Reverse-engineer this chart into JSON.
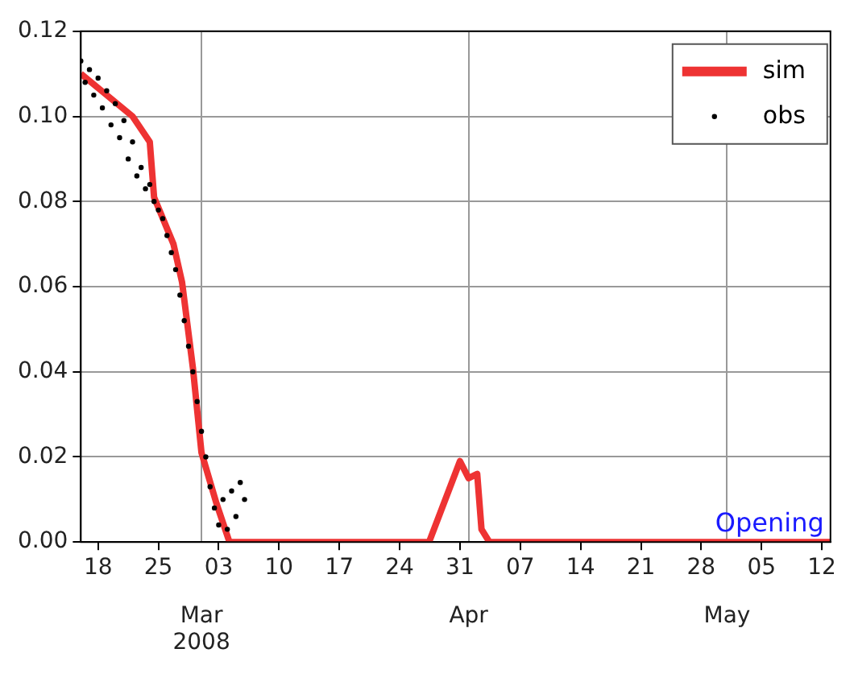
{
  "chart_data": {
    "type": "line",
    "xlim": [
      "2008-02-16",
      "2008-05-13"
    ],
    "xticks": [
      {
        "value": "2008-02-18",
        "label": "18"
      },
      {
        "value": "2008-02-25",
        "label": "25"
      },
      {
        "value": "2008-03-03",
        "label": "03"
      },
      {
        "value": "2008-03-10",
        "label": "10"
      },
      {
        "value": "2008-03-17",
        "label": "17"
      },
      {
        "value": "2008-03-24",
        "label": "24"
      },
      {
        "value": "2008-03-31",
        "label": "31"
      },
      {
        "value": "2008-04-07",
        "label": "07"
      },
      {
        "value": "2008-04-14",
        "label": "14"
      },
      {
        "value": "2008-04-21",
        "label": "21"
      },
      {
        "value": "2008-04-28",
        "label": "28"
      },
      {
        "value": "2008-05-05",
        "label": "05"
      },
      {
        "value": "2008-05-12",
        "label": "12"
      }
    ],
    "x2lim": [
      "2008-02-16",
      "2008-05-13"
    ],
    "x2ticks": [
      {
        "value": "2008-03-01",
        "label": "Mar 2008"
      },
      {
        "value": "2008-04-01",
        "label": "Apr"
      },
      {
        "value": "2008-05-01",
        "label": "May"
      }
    ],
    "ylim": [
      0,
      0.12
    ],
    "yticks": [
      {
        "value": 0,
        "label": "0.00"
      },
      {
        "value": 0.02,
        "label": "0.02"
      },
      {
        "value": 0.04,
        "label": "0.04"
      },
      {
        "value": 0.06,
        "label": "0.06"
      },
      {
        "value": 0.08,
        "label": "0.08"
      },
      {
        "value": 0.1,
        "label": "0.10"
      },
      {
        "value": 0.12,
        "label": "0.12"
      }
    ],
    "grid": true,
    "legend": "top right",
    "annotations": [
      "Opening"
    ],
    "series": [
      {
        "name": "sim",
        "color": "#ee3333",
        "x": [
          "2008-02-16",
          "2008-02-22",
          "2008-02-24",
          "2008-02-24T12:00",
          "2008-02-26T18:00",
          "2008-02-27T18:00",
          "2008-02-29",
          "2008-03-01",
          "2008-03-02T18:00",
          "2008-03-04T06:00",
          "2008-03-27T10:00",
          "2008-03-31",
          "2008-04-01",
          "2008-04-02",
          "2008-04-02T12:00",
          "2008-04-03T10:00",
          "2008-05-13"
        ],
        "values": [
          0.11,
          0.1,
          0.094,
          0.081,
          0.07,
          0.061,
          0.041,
          0.021,
          0.009,
          0,
          0,
          0.019,
          0.015,
          0.016,
          0.003,
          0,
          0
        ]
      },
      {
        "name": "obs",
        "type": "scatter",
        "marker": "circle",
        "color": "#000000",
        "x": [
          "2008-02-16",
          "2008-02-16T12:00",
          "2008-02-17",
          "2008-02-17T12:00",
          "2008-02-18",
          "2008-02-18T12:00",
          "2008-02-19",
          "2008-02-19T12:00",
          "2008-02-20",
          "2008-02-20T12:00",
          "2008-02-21",
          "2008-02-21T12:00",
          "2008-02-22",
          "2008-02-22T12:00",
          "2008-02-23",
          "2008-02-23T12:00",
          "2008-02-24",
          "2008-02-24T12:00",
          "2008-02-25",
          "2008-02-25T12:00",
          "2008-02-26",
          "2008-02-26T12:00",
          "2008-02-27",
          "2008-02-27T12:00",
          "2008-02-28",
          "2008-02-28T12:00",
          "2008-02-29",
          "2008-02-29T12:00",
          "2008-03-01",
          "2008-03-01T12:00",
          "2008-03-02",
          "2008-03-02T12:00",
          "2008-03-03",
          "2008-03-03T12:00",
          "2008-03-04",
          "2008-03-04T12:00",
          "2008-03-05",
          "2008-03-05T12:00",
          "2008-03-06"
        ],
        "values": [
          0.113,
          0.108,
          0.111,
          0.105,
          0.109,
          0.102,
          0.106,
          0.098,
          0.103,
          0.095,
          0.099,
          0.09,
          0.094,
          0.086,
          0.088,
          0.083,
          0.084,
          0.08,
          0.078,
          0.076,
          0.072,
          0.068,
          0.064,
          0.058,
          0.052,
          0.046,
          0.04,
          0.033,
          0.026,
          0.02,
          0.013,
          0.008,
          0.004,
          0.01,
          0.003,
          0.012,
          0.006,
          0.014,
          0.01
        ]
      }
    ]
  }
}
